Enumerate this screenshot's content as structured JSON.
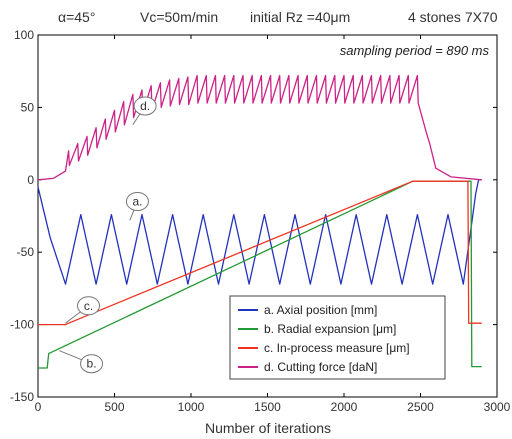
{
  "header": {
    "angle": "α=45°",
    "speed": "Vc=50m/min",
    "roughness": "initial Rz =40μm",
    "stones": "4 stones 7X70"
  },
  "annotation": "sampling period = 890 ms",
  "chart_data": {
    "type": "line",
    "xlabel": "Number of iterations",
    "ylabel": "",
    "xlim": [
      0,
      3000
    ],
    "ylim": [
      -150,
      100
    ],
    "xticks": [
      "0",
      "500",
      "1000",
      "1500",
      "2000",
      "2500",
      "3000"
    ],
    "yticks": [
      "100",
      "50",
      "0",
      "-50",
      "-100",
      "-150"
    ],
    "grid": false,
    "legend_position": "bottom-right",
    "series": [
      {
        "name": "a. Axial position [mm]",
        "callout": "a.",
        "color": "#2233bb",
        "x": [
          0,
          80,
          180,
          280,
          380,
          480,
          580,
          680,
          780,
          880,
          980,
          1080,
          1180,
          1280,
          1380,
          1480,
          1580,
          1680,
          1780,
          1880,
          1980,
          2080,
          2180,
          2280,
          2380,
          2480,
          2580,
          2680,
          2780,
          2840,
          2860,
          2880,
          2900
        ],
        "y": [
          -5,
          -40,
          -72,
          -24,
          -72,
          -24,
          -72,
          -24,
          -72,
          -24,
          -72,
          -24,
          -72,
          -24,
          -72,
          -24,
          -72,
          -24,
          -72,
          -24,
          -72,
          -24,
          -72,
          -24,
          -72,
          -24,
          -72,
          -24,
          -72,
          -26,
          -10,
          0,
          0
        ]
      },
      {
        "name": "b. Radial expansion [μm]",
        "callout": "b.",
        "color": "#229933",
        "x": [
          0,
          60,
          70,
          2450,
          2800,
          2830,
          2835,
          2900
        ],
        "y": [
          -130,
          -130,
          -120,
          -1,
          -1,
          -1,
          -129,
          -129
        ]
      },
      {
        "name": "c. In-process measure [μm]",
        "callout": "c.",
        "color": "#ee3322",
        "x": [
          0,
          180,
          200,
          2450,
          2800,
          2810,
          2815,
          2900
        ],
        "y": [
          -100,
          -100,
          -99,
          -1,
          -1,
          -1,
          -99,
          -99
        ]
      },
      {
        "name": "d. Cutting force [daN]",
        "callout": "d.",
        "color": "#cc2288",
        "x": [
          0,
          100,
          180,
          200,
          205,
          260,
          265,
          320,
          325,
          380,
          385,
          440,
          445,
          500,
          505,
          560,
          565,
          620,
          625,
          680,
          685,
          740,
          745,
          800,
          805,
          860,
          865,
          920,
          925,
          980,
          985,
          1040,
          1045,
          1100,
          1105,
          1160,
          1165,
          1220,
          1225,
          1280,
          1285,
          1340,
          1345,
          1400,
          1405,
          1460,
          1465,
          1520,
          1525,
          1580,
          1585,
          1640,
          1645,
          1700,
          1705,
          1760,
          1765,
          1820,
          1825,
          1880,
          1885,
          1940,
          1945,
          2000,
          2005,
          2060,
          2065,
          2120,
          2125,
          2180,
          2185,
          2240,
          2245,
          2300,
          2305,
          2360,
          2365,
          2420,
          2425,
          2480,
          2485,
          2540,
          2560,
          2600,
          2700,
          2900
        ],
        "y": [
          0,
          1,
          6,
          20,
          10,
          25,
          13,
          30,
          17,
          36,
          22,
          42,
          28,
          48,
          33,
          54,
          38,
          59,
          43,
          62,
          46,
          65,
          48,
          67,
          50,
          69,
          51,
          70,
          52,
          71,
          52,
          72,
          53,
          72,
          53,
          72,
          53,
          72,
          53,
          72,
          53,
          72,
          53,
          72,
          53,
          72,
          53,
          72,
          53,
          72,
          53,
          72,
          53,
          72,
          53,
          72,
          53,
          72,
          53,
          72,
          53,
          72,
          53,
          72,
          53,
          72,
          53,
          72,
          53,
          72,
          53,
          72,
          53,
          72,
          53,
          72,
          53,
          72,
          53,
          72,
          53,
          32,
          25,
          8,
          2,
          0
        ]
      }
    ]
  }
}
